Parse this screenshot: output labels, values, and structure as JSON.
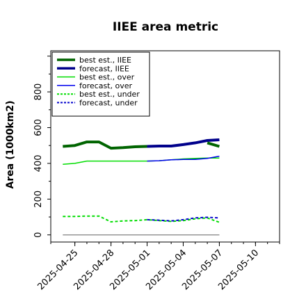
{
  "chart_data": {
    "type": "line",
    "title": "IIEE area metric",
    "xlabel": "",
    "ylabel": "Area (1000km2)",
    "ylim": [
      -40,
      1030
    ],
    "xlim": [
      "2025-04-23",
      "2025-05-12"
    ],
    "grid": false,
    "legend_position": "top-left",
    "x_ticks": [
      "2025-04-25",
      "2025-04-28",
      "2025-05-01",
      "2025-05-04",
      "2025-05-07",
      "2025-05-10"
    ],
    "highlight_tick": "2025-05-01",
    "highlight_color": "#228b22",
    "y_ticks": [
      0,
      200,
      400,
      600,
      800
    ],
    "x_dates": [
      "2025-04-25",
      "2025-04-26",
      "2025-04-27",
      "2025-04-28",
      "2025-04-29",
      "2025-04-30",
      "2025-05-01",
      "2025-05-02",
      "2025-05-03",
      "2025-05-04",
      "2025-05-05",
      "2025-05-06",
      "2025-05-07"
    ],
    "zero_line": {
      "start": "2025-04-24",
      "end": "2025-05-07",
      "value": 0,
      "color": "#808080"
    },
    "series": [
      {
        "name": "best est., IIEE",
        "color": "#006400",
        "width": 4,
        "dash": "",
        "x": [
          "2025-04-24",
          "2025-04-25",
          "2025-04-26",
          "2025-04-27",
          "2025-04-28",
          "2025-04-29",
          "2025-04-30",
          "2025-05-01"
        ],
        "values": [
          495,
          500,
          520,
          520,
          485,
          488,
          493,
          495
        ]
      },
      {
        "name": "forecast, IIEE",
        "color": "#00008b",
        "width": 4,
        "dash": "",
        "x": [
          "2025-05-01",
          "2025-05-02",
          "2025-05-03",
          "2025-05-04",
          "2025-05-05",
          "2025-05-06",
          "2025-05-07"
        ],
        "values": [
          495,
          497,
          497,
          505,
          515,
          528,
          532
        ]
      },
      {
        "name": "best est., over",
        "color": "#00dd00",
        "width": 1.5,
        "dash": "",
        "x": [
          "2025-04-24",
          "2025-04-25",
          "2025-04-26",
          "2025-04-27",
          "2025-04-28",
          "2025-04-29",
          "2025-04-30",
          "2025-05-01",
          "2025-05-02",
          "2025-05-03",
          "2025-05-04",
          "2025-05-05",
          "2025-05-06",
          "2025-05-07"
        ],
        "values": [
          395,
          400,
          413,
          413,
          413,
          413,
          413,
          413,
          415,
          420,
          425,
          428,
          430,
          430
        ]
      },
      {
        "name": "forecast, over",
        "color": "#0000ee",
        "width": 1.5,
        "dash": "",
        "x": [
          "2025-05-01",
          "2025-05-02",
          "2025-05-03",
          "2025-05-04",
          "2025-05-05",
          "2025-05-06",
          "2025-05-07"
        ],
        "values": [
          413,
          415,
          420,
          422,
          422,
          428,
          440
        ]
      },
      {
        "name": "best est., under",
        "color": "#00dd00",
        "width": 2,
        "dash": "4,3",
        "x": [
          "2025-04-24",
          "2025-04-25",
          "2025-04-26",
          "2025-04-27",
          "2025-04-28",
          "2025-04-29",
          "2025-04-30",
          "2025-05-01",
          "2025-05-02",
          "2025-05-03",
          "2025-05-04",
          "2025-05-05",
          "2025-05-06",
          "2025-05-07"
        ],
        "values": [
          103,
          103,
          105,
          105,
          73,
          78,
          80,
          85,
          80,
          75,
          80,
          90,
          95,
          70
        ]
      },
      {
        "name": "forecast, under",
        "color": "#0000cd",
        "width": 2,
        "dash": "4,3",
        "x": [
          "2025-05-01",
          "2025-05-02",
          "2025-05-03",
          "2025-05-04",
          "2025-05-05",
          "2025-05-06",
          "2025-05-07"
        ],
        "values": [
          85,
          82,
          78,
          85,
          95,
          98,
          95
        ]
      },
      {
        "name": "",
        "color": "#006400",
        "width": 4,
        "dash": "",
        "x": [
          "2025-05-06",
          "2025-05-07"
        ],
        "values": [
          515,
          495
        ]
      }
    ]
  }
}
